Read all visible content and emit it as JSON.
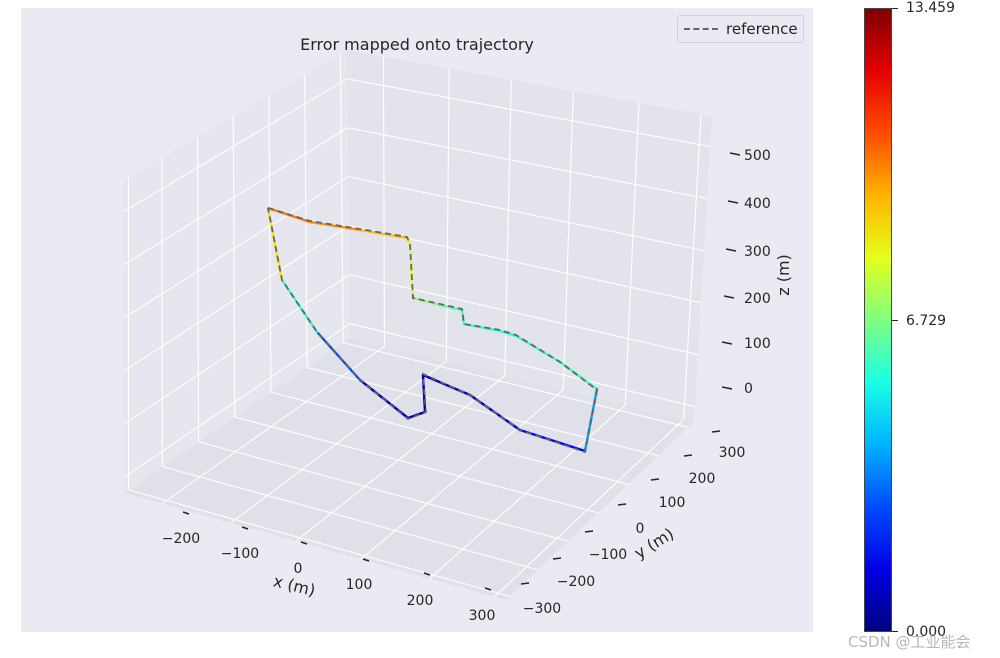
{
  "chart_data": {
    "type": "line",
    "projection": "3d",
    "title": "Error mapped onto trajectory",
    "xlabel": "x (m)",
    "ylabel": "y (m)",
    "zlabel": "z (m)",
    "xticks": [
      "−200",
      "−100",
      "0",
      "100",
      "200",
      "300"
    ],
    "yticks": [
      "−300",
      "−200",
      "−100",
      "0",
      "100",
      "200",
      "300"
    ],
    "zticks": [
      "0",
      "100",
      "200",
      "300",
      "400",
      "500"
    ],
    "legend": {
      "entries": [
        "reference"
      ],
      "placement": "top-right"
    },
    "colorbar": {
      "colormap": "jet",
      "min": 0.0,
      "max": 13.459,
      "tick_labels": [
        "0.000",
        "6.729",
        "13.459"
      ]
    },
    "colors": {
      "panel_background": "#eaeaf2",
      "grid": "#ffffff",
      "reference_line": "#666666"
    }
  },
  "watermark": "CSDN @工业能会"
}
